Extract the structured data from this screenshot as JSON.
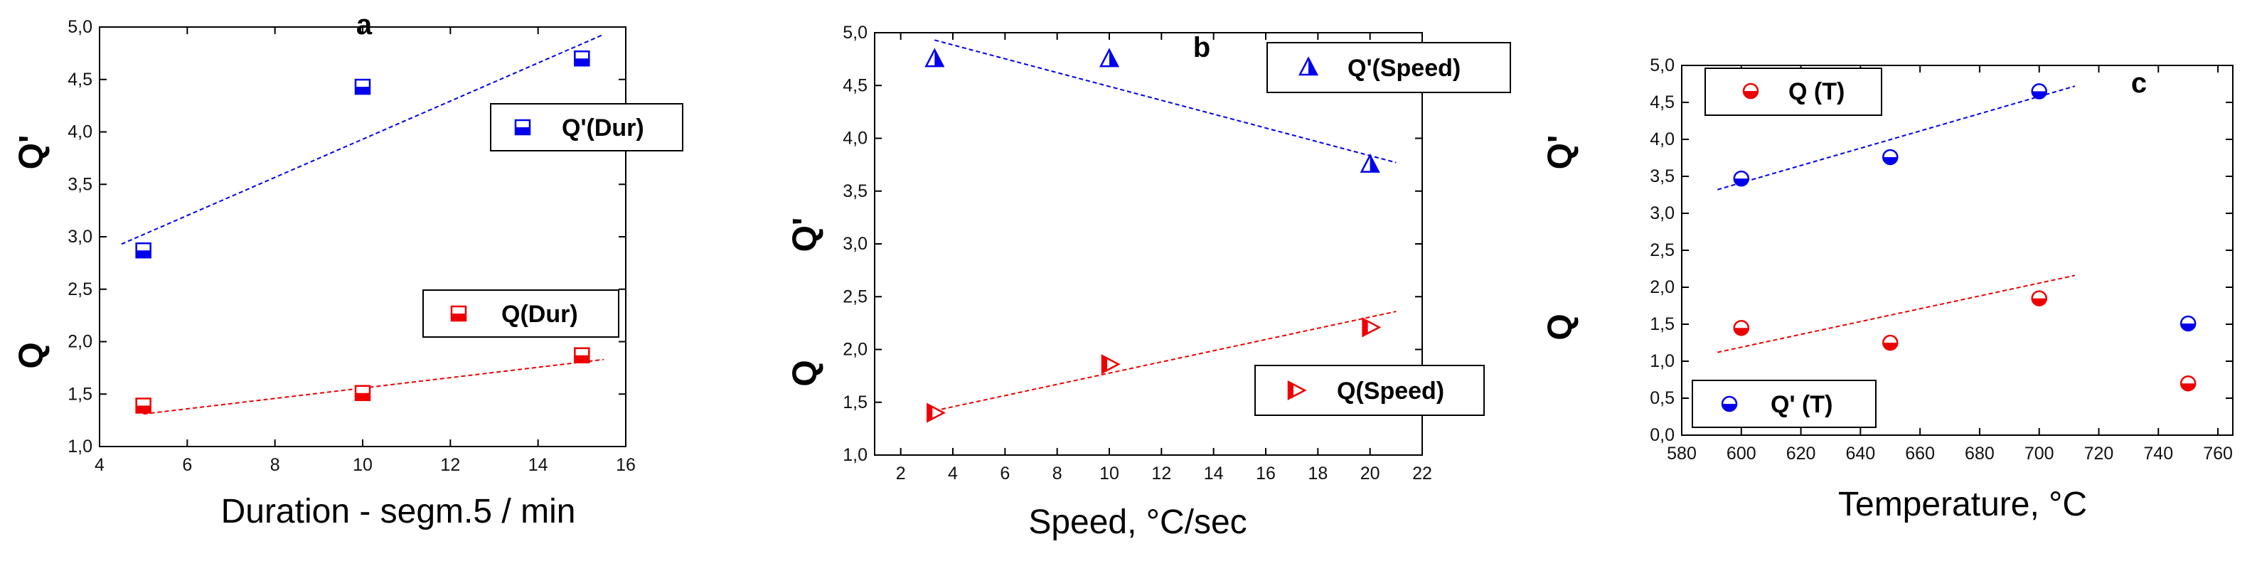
{
  "figure": {
    "description_labels": [
      "a",
      "b",
      "c"
    ]
  },
  "chart_data": [
    {
      "type": "scatter",
      "panel_label": "a",
      "xlabel": "Duration - segm.5 / min",
      "ylabel_top": "Q'",
      "ylabel_bottom": "Q",
      "xlim": [
        4,
        16
      ],
      "ylim": [
        1.0,
        5.0
      ],
      "xticks": [
        4,
        6,
        8,
        10,
        12,
        14,
        16
      ],
      "xtick_labels": [
        "4",
        "6",
        "8",
        "10",
        "12",
        "14",
        "16"
      ],
      "yticks": [
        1.0,
        1.5,
        2.0,
        2.5,
        3.0,
        3.5,
        4.0,
        4.5,
        5.0
      ],
      "ytick_labels": [
        "1,0",
        "1,5",
        "2,0",
        "2,5",
        "3,0",
        "3,5",
        "4,0",
        "4,5",
        "5,0"
      ],
      "series": [
        {
          "name": "Q'(Dur)",
          "color": "#0000ee",
          "marker": "square-half",
          "x": [
            5,
            10,
            15
          ],
          "y": [
            2.87,
            4.43,
            4.7
          ],
          "fit": {
            "x": [
              4.5,
              15.5
            ],
            "y": [
              2.93,
              4.93
            ]
          }
        },
        {
          "name": "Q(Dur)",
          "color": "#ee0000",
          "marker": "square-half",
          "x": [
            5,
            10,
            15
          ],
          "y": [
            1.39,
            1.51,
            1.87
          ],
          "fit": {
            "x": [
              5,
              15.5
            ],
            "y": [
              1.31,
              1.83
            ]
          }
        }
      ]
    },
    {
      "type": "scatter",
      "panel_label": "b",
      "xlabel": "Speed, °C/sec",
      "ylabel_top": "Q'",
      "ylabel_bottom": "Q",
      "xlim": [
        1,
        22
      ],
      "ylim": [
        1.0,
        5.0
      ],
      "xticks": [
        2,
        4,
        6,
        8,
        10,
        12,
        14,
        16,
        18,
        20,
        22
      ],
      "xtick_labels": [
        "2",
        "4",
        "6",
        "8",
        "10",
        "12",
        "14",
        "16",
        "18",
        "20",
        "22"
      ],
      "yticks": [
        1.0,
        1.5,
        2.0,
        2.5,
        3.0,
        3.5,
        4.0,
        4.5,
        5.0
      ],
      "ytick_labels": [
        "1,0",
        "1,5",
        "2,0",
        "2,5",
        "3,0",
        "3,5",
        "4,0",
        "4,5",
        "5,0"
      ],
      "series": [
        {
          "name": "Q'(Speed)",
          "color": "#0000ee",
          "marker": "triangle-half",
          "x": [
            3.3,
            10,
            20
          ],
          "y": [
            4.75,
            4.75,
            3.75
          ],
          "fit": {
            "x": [
              3.3,
              21
            ],
            "y": [
              4.93,
              3.77
            ]
          }
        },
        {
          "name": "Q(Speed)",
          "color": "#ee0000",
          "marker": "triangle-right",
          "x": [
            3.3,
            10,
            20
          ],
          "y": [
            1.4,
            1.86,
            2.21
          ],
          "fit": {
            "x": [
              3.3,
              21
            ],
            "y": [
              1.42,
              2.36
            ]
          }
        }
      ]
    },
    {
      "type": "scatter",
      "panel_label": "c",
      "xlabel": "Temperature, °C",
      "ylabel_top": "Q'",
      "ylabel_bottom": "Q",
      "xlim": [
        580,
        765
      ],
      "ylim": [
        0.0,
        5.0
      ],
      "xticks": [
        580,
        600,
        620,
        640,
        660,
        680,
        700,
        720,
        740,
        760
      ],
      "xtick_labels": [
        "580",
        "600",
        "620",
        "640",
        "660",
        "680",
        "700",
        "720",
        "740",
        "760"
      ],
      "yticks": [
        0.0,
        0.5,
        1.0,
        1.5,
        2.0,
        2.5,
        3.0,
        3.5,
        4.0,
        4.5,
        5.0
      ],
      "ytick_labels": [
        "0,0",
        "0,5",
        "1,0",
        "1,5",
        "2,0",
        "2,5",
        "3,0",
        "3,5",
        "4,0",
        "4,5",
        "5,0"
      ],
      "series": [
        {
          "name": "Q (T)",
          "color": "#ee0000",
          "marker": "circle-half",
          "x": [
            600,
            650,
            700,
            750
          ],
          "y": [
            1.45,
            1.25,
            1.85,
            0.7
          ],
          "fit": {
            "x": [
              592,
              712
            ],
            "y": [
              1.12,
              2.16
            ]
          }
        },
        {
          "name": "Q' (T)",
          "color": "#0000ee",
          "marker": "circle-half",
          "x": [
            600,
            650,
            700,
            750
          ],
          "y": [
            3.47,
            3.76,
            4.65,
            1.51
          ],
          "fit": {
            "x": [
              592,
              712
            ],
            "y": [
              3.32,
              4.72
            ]
          }
        }
      ]
    }
  ]
}
